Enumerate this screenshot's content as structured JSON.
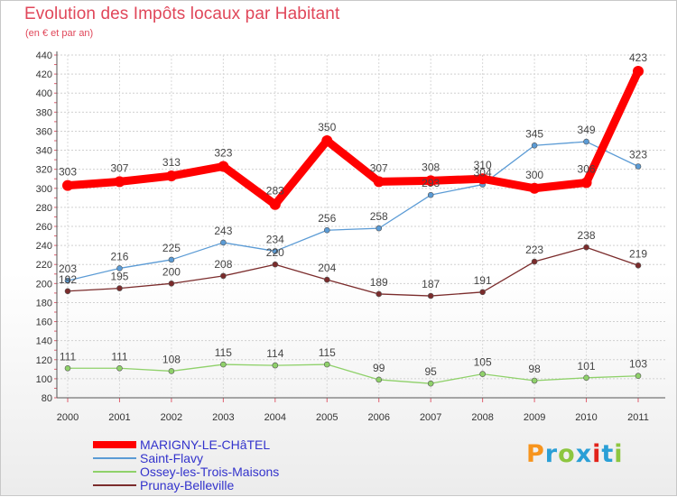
{
  "header": {
    "title": "Evolution des Impôts locaux par Habitant",
    "subtitle": "(en € et par an)"
  },
  "logo": {
    "text": "Proxiti",
    "colors": [
      "#f7941d",
      "#2a9fd6",
      "#8dc63f",
      "#2a9fd6",
      "#e2231a",
      "#2a9fd6",
      "#8dc63f"
    ]
  },
  "chart_data": {
    "type": "line",
    "x": [
      "2000",
      "2001",
      "2002",
      "2003",
      "2004",
      "2005",
      "2006",
      "2007",
      "2008",
      "2009",
      "2010",
      "2011"
    ],
    "ylim": [
      80,
      440
    ],
    "yticks": [
      80,
      100,
      120,
      140,
      160,
      180,
      200,
      220,
      240,
      260,
      280,
      300,
      320,
      340,
      360,
      380,
      400,
      420,
      440
    ],
    "grid": true,
    "legend_position": "bottom-left",
    "series": [
      {
        "name": "MARIGNY-LE-CHâTEL",
        "color": "#ff0000",
        "emphasis": true,
        "values": [
          303,
          307,
          313,
          323,
          283,
          350,
          307,
          308,
          310,
          300,
          306,
          423
        ],
        "labels": [
          "303",
          "307",
          "313",
          "323",
          "283",
          "350",
          "307",
          "308",
          "310",
          "300",
          "306",
          "423"
        ]
      },
      {
        "name": "Saint-Flavy",
        "color": "#5b9bd5",
        "emphasis": false,
        "values": [
          203,
          216,
          225,
          243,
          234,
          256,
          258,
          293,
          304,
          345,
          349,
          323
        ],
        "labels": [
          "203",
          "216",
          "225",
          "243",
          "234",
          "256",
          "258",
          "293",
          "304",
          "345",
          "349",
          "323"
        ]
      },
      {
        "name": "Ossey-les-Trois-Maisons",
        "color": "#8fd16a",
        "emphasis": false,
        "values": [
          111,
          111,
          108,
          115,
          114,
          115,
          99,
          95,
          105,
          98,
          101,
          103
        ],
        "labels": [
          "111",
          "111",
          "108",
          "115",
          "114",
          "115",
          "99",
          "95",
          "105",
          "98",
          "101",
          "103"
        ]
      },
      {
        "name": "Prunay-Belleville",
        "color": "#7b2c2c",
        "emphasis": false,
        "values": [
          192,
          195,
          200,
          208,
          220,
          204,
          189,
          187,
          191,
          223,
          238,
          219
        ],
        "labels": [
          "192",
          "195",
          "200",
          "208",
          "220",
          "204",
          "189",
          "187",
          "191",
          "223",
          "238",
          "219"
        ]
      }
    ]
  }
}
